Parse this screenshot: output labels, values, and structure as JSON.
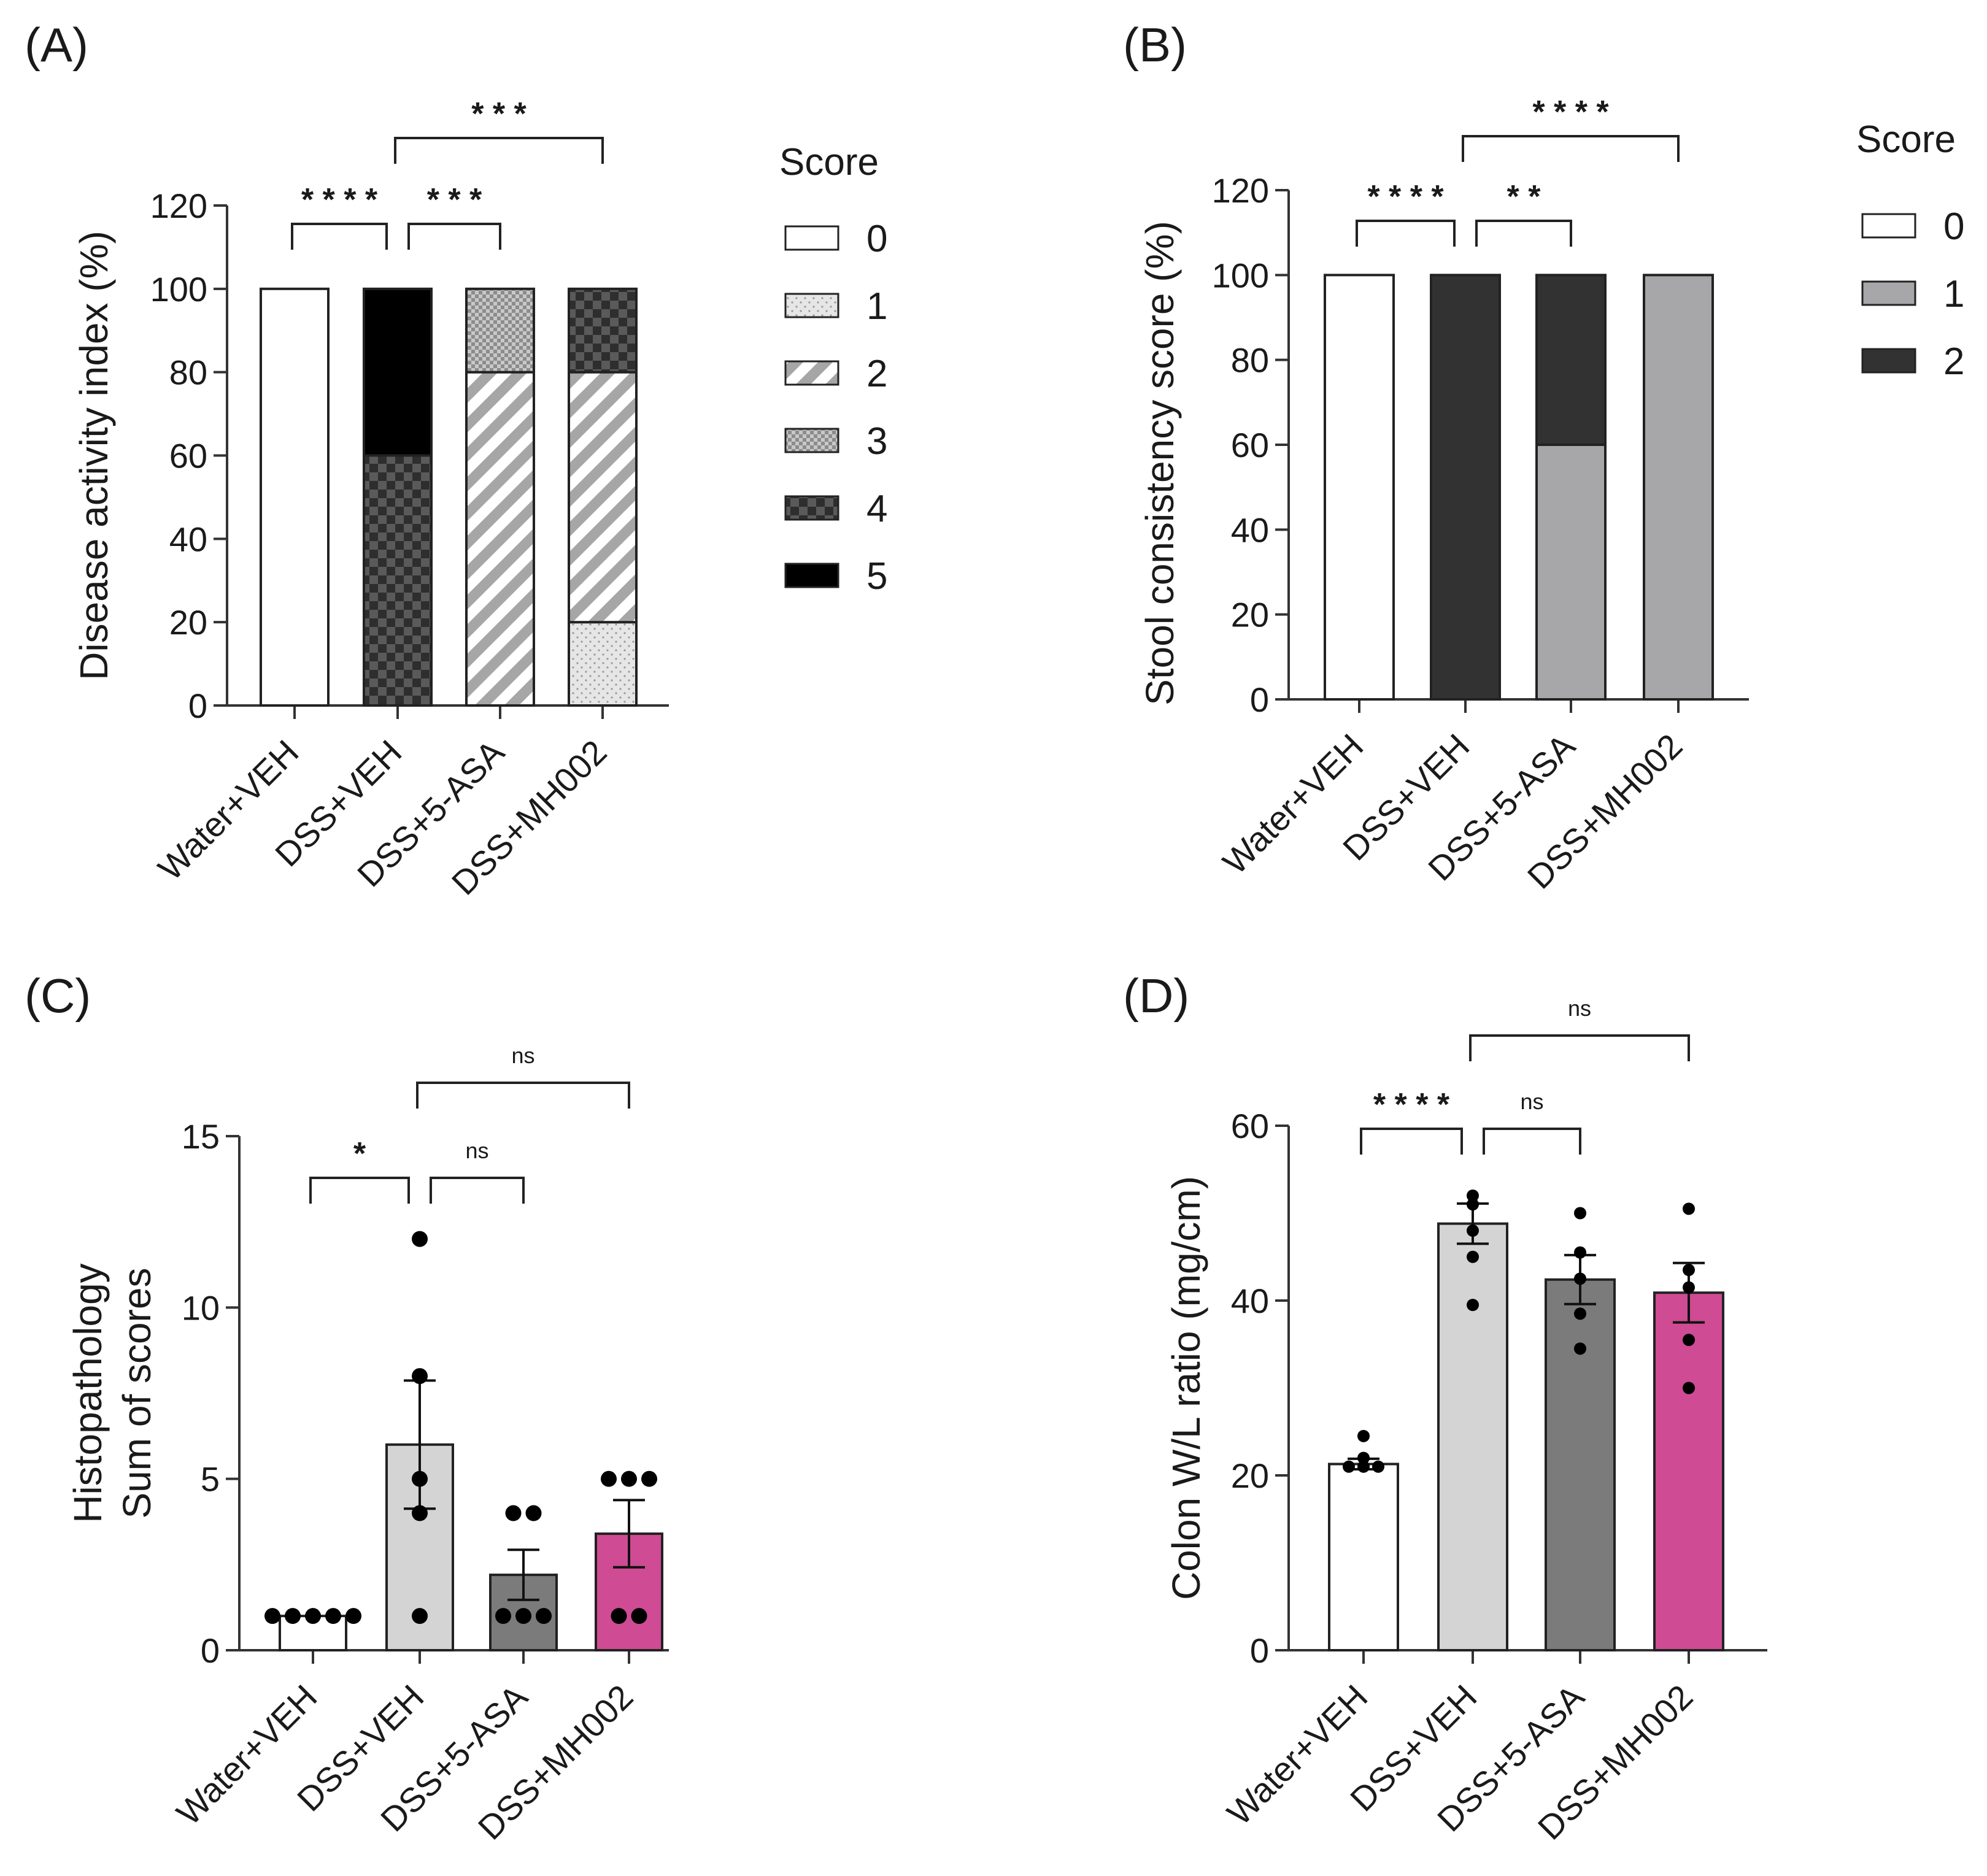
{
  "panels": {
    "A": "(A)",
    "B": "(B)",
    "C": "(C)",
    "D": "(D)"
  },
  "chart_data": [
    {
      "id": "A",
      "type": "bar",
      "stacked": true,
      "ylabel": "Disease activity index (%)",
      "ylim": [
        0,
        120
      ],
      "yticks": [
        0,
        20,
        40,
        60,
        80,
        100,
        120
      ],
      "categories": [
        "Water+VEH",
        "DSS+VEH",
        "DSS+5-ASA",
        "DSS+MH002"
      ],
      "legend_title": "Score",
      "legend": [
        "0",
        "1",
        "2",
        "3",
        "4",
        "5"
      ],
      "series": [
        {
          "name": "0",
          "values": [
            100,
            0,
            0,
            0
          ]
        },
        {
          "name": "1",
          "values": [
            0,
            0,
            0,
            20
          ]
        },
        {
          "name": "2",
          "values": [
            0,
            0,
            80,
            60
          ]
        },
        {
          "name": "3",
          "values": [
            0,
            0,
            20,
            0
          ]
        },
        {
          "name": "4",
          "values": [
            0,
            60,
            0,
            20
          ]
        },
        {
          "name": "5",
          "values": [
            0,
            40,
            0,
            0
          ]
        }
      ],
      "brackets": [
        {
          "from": 0,
          "to": 1,
          "label": "* * * *"
        },
        {
          "from": 1,
          "to": 2,
          "label": "* * *"
        },
        {
          "from": 1,
          "to": 3,
          "label": "* * *"
        }
      ]
    },
    {
      "id": "B",
      "type": "bar",
      "stacked": true,
      "ylabel": "Stool consistency score (%)",
      "ylim": [
        0,
        120
      ],
      "yticks": [
        0,
        20,
        40,
        60,
        80,
        100,
        120
      ],
      "categories": [
        "Water+VEH",
        "DSS+VEH",
        "DSS+5-ASA",
        "DSS+MH002"
      ],
      "legend_title": "Score",
      "legend": [
        "0",
        "1",
        "2"
      ],
      "series": [
        {
          "name": "0",
          "values": [
            100,
            0,
            0,
            0
          ]
        },
        {
          "name": "1",
          "values": [
            0,
            0,
            60,
            100
          ]
        },
        {
          "name": "2",
          "values": [
            0,
            100,
            40,
            0
          ]
        }
      ],
      "brackets": [
        {
          "from": 0,
          "to": 1,
          "label": "* * * *"
        },
        {
          "from": 1,
          "to": 2,
          "label": "* *"
        },
        {
          "from": 1,
          "to": 3,
          "label": "* * * *"
        }
      ]
    },
    {
      "id": "C",
      "type": "bar",
      "ylabel": [
        "Histopathology",
        "Sum of scores"
      ],
      "ylim": [
        0,
        15
      ],
      "yticks": [
        0,
        5,
        10,
        15
      ],
      "categories": [
        "Water+VEH",
        "DSS+VEH",
        "DSS+5-ASA",
        "DSS+MH002"
      ],
      "values": [
        1,
        6,
        2.2,
        3.4
      ],
      "sem": [
        0,
        1.87,
        0.73,
        0.98
      ],
      "points": [
        [
          1,
          1,
          1,
          1,
          1
        ],
        [
          12,
          8,
          5,
          4,
          1
        ],
        [
          4,
          4,
          1,
          1,
          1
        ],
        [
          5,
          5,
          5,
          1,
          1
        ]
      ],
      "colors": [
        "#ffffff",
        "#d4d4d4",
        "#7b7b7b",
        "#cf4b93"
      ],
      "brackets": [
        {
          "from": 0,
          "to": 1,
          "label": "*"
        },
        {
          "from": 1,
          "to": 2,
          "label": "ns"
        },
        {
          "from": 1,
          "to": 3,
          "label": "ns"
        }
      ]
    },
    {
      "id": "D",
      "type": "bar",
      "ylabel": "Colon W/L ratio (mg/cm)",
      "ylim": [
        0,
        60
      ],
      "yticks": [
        0,
        20,
        40,
        60
      ],
      "categories": [
        "Water+VEH",
        "DSS+VEH",
        "DSS+5-ASA",
        "DSS+MH002"
      ],
      "values": [
        21.3,
        48.8,
        42.4,
        40.9
      ],
      "sem": [
        0.6,
        2.3,
        2.8,
        3.4
      ],
      "points": [
        [
          24.5,
          22,
          21,
          21,
          21
        ],
        [
          52,
          51,
          48,
          45,
          39.5
        ],
        [
          50,
          45.5,
          42.5,
          38.5,
          34.5
        ],
        [
          50.5,
          43.5,
          41.5,
          35.5,
          30
        ]
      ],
      "colors": [
        "#ffffff",
        "#d4d4d4",
        "#7b7b7b",
        "#cf4b93"
      ],
      "brackets": [
        {
          "from": 0,
          "to": 1,
          "label": "* * * *"
        },
        {
          "from": 1,
          "to": 2,
          "label": "ns"
        },
        {
          "from": 1,
          "to": 3,
          "label": "ns"
        }
      ]
    }
  ]
}
